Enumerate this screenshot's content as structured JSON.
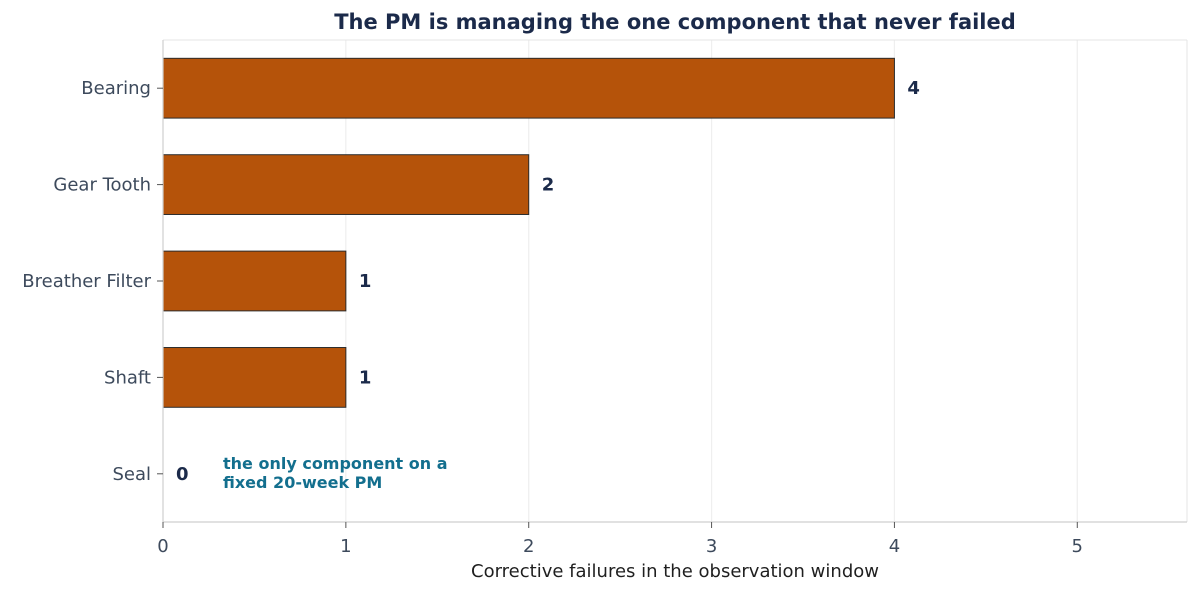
{
  "chart_data": {
    "type": "bar",
    "orientation": "horizontal",
    "title": "The PM is managing the one component that never failed",
    "xlabel": "Corrective failures in the observation window",
    "ylabel": "",
    "categories": [
      "Bearing",
      "Gear Tooth",
      "Breather Filter",
      "Shaft",
      "Seal"
    ],
    "values": [
      4,
      2,
      1,
      1,
      0
    ],
    "xlim": [
      0,
      5.6
    ],
    "xticks": [
      0,
      1,
      2,
      3,
      4,
      5
    ],
    "grid": true,
    "legend": "none",
    "bar_color": "#b5530a",
    "bar_edge_color": "#2b2b2b",
    "annotation": {
      "category": "Seal",
      "lines": [
        "the only component on a",
        "fixed 20-week PM"
      ],
      "color": "#136f8e"
    }
  }
}
